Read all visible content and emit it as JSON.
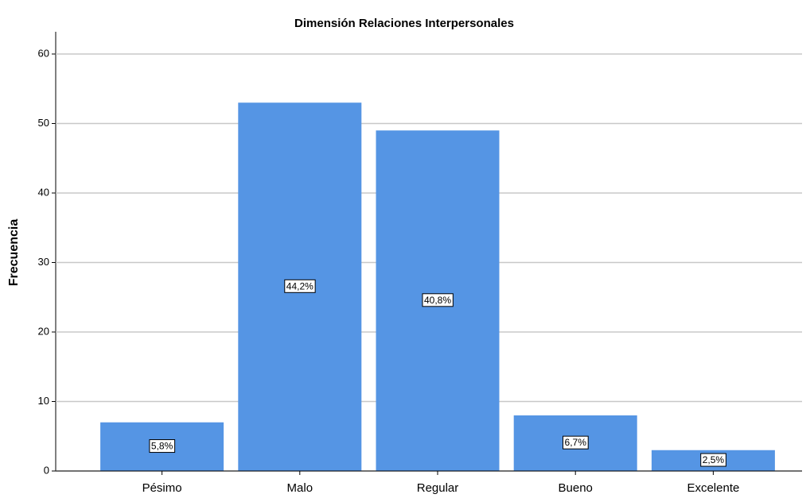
{
  "chart_data": {
    "type": "bar",
    "title": "Dimensión Relaciones Interpersonales",
    "y_label": "Frecuencia",
    "categories": [
      "Pésimo",
      "Malo",
      "Regular",
      "Bueno",
      "Excelente"
    ],
    "values": [
      7,
      53,
      49,
      8,
      3
    ],
    "value_labels": [
      "5,8%",
      "44,2%",
      "40,8%",
      "6,7%",
      "2,5%"
    ],
    "color": "#5595e4",
    "ylim": [
      0,
      60
    ],
    "yticks": [
      0,
      10,
      20,
      30,
      40,
      50,
      60
    ],
    "grid": true
  }
}
